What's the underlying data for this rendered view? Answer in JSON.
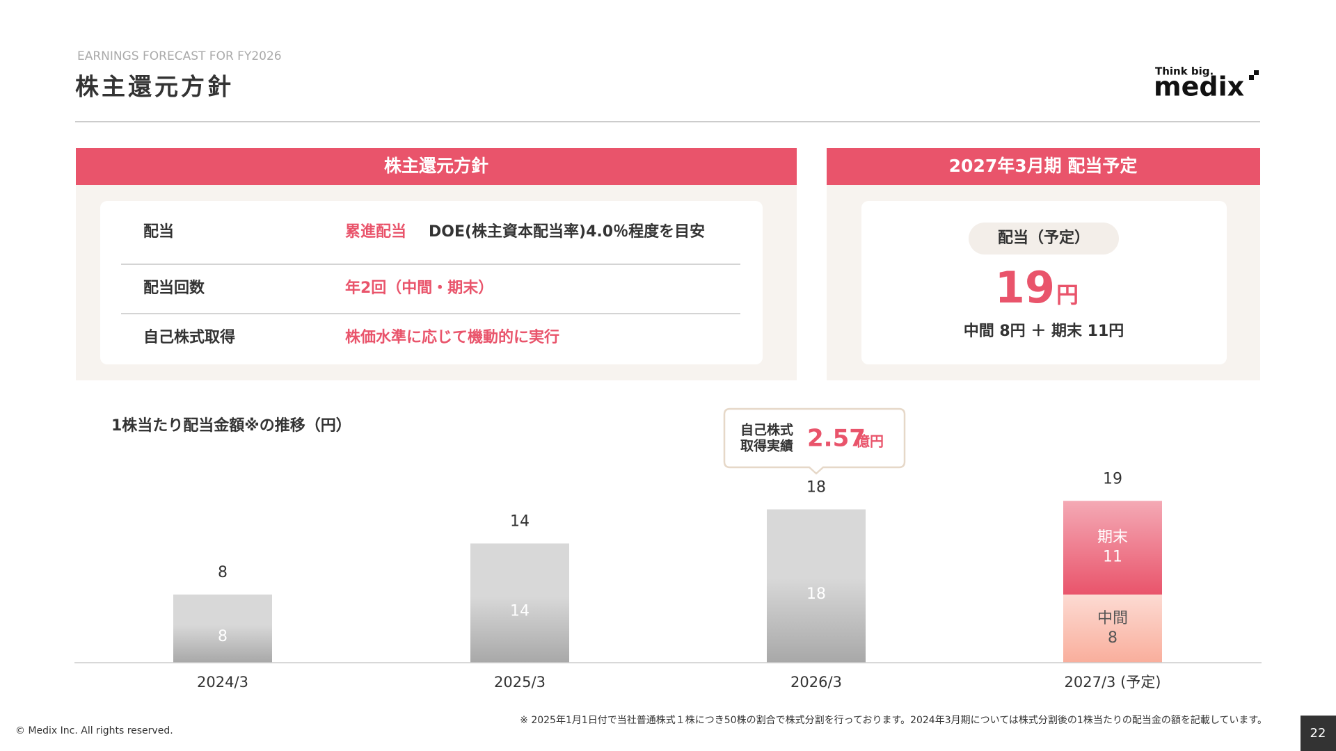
{
  "header": {
    "subtitle": "EARNINGS FORECAST FOR FY2026",
    "title": "株主還元方針",
    "logo_tagline": "Think big.",
    "logo": "medix"
  },
  "policy": {
    "heading": "株主還元方針",
    "rows": [
      {
        "label": "配当",
        "value": "累進配当",
        "detail": "DOE(株主資本配当率)4.0％程度を目安"
      },
      {
        "label": "配当回数",
        "value": "年2回（中間・期末）"
      },
      {
        "label": "自己株式取得",
        "value": "株価水準に応じて機動的に実行"
      }
    ]
  },
  "forecast": {
    "heading": "2027年3月期 配当予定",
    "badge": "配当（予定）",
    "amount": "19",
    "unit": "円",
    "breakdown": "中間 8円 ＋ 期末 11円"
  },
  "chart_data": {
    "type": "bar",
    "title": "1株当たり配当金額※の推移（円）",
    "categories": [
      "2024/3",
      "2025/3",
      "2026/3",
      "2027/3 (予定)"
    ],
    "series": [
      {
        "color": "#a8a8a8",
        "values": [
          8,
          14,
          18,
          null
        ]
      },
      {
        "name": "中間",
        "color": "#f9ae9c",
        "values": [
          null,
          null,
          null,
          8
        ]
      },
      {
        "name": "期末",
        "color": "#e9546b",
        "values": [
          null,
          null,
          null,
          11
        ]
      }
    ],
    "totals": [
      8,
      14,
      18,
      19
    ],
    "ylim": [
      0,
      20
    ],
    "annotation": {
      "lines": [
        "自己株式",
        "取得実績"
      ],
      "value": "2.57",
      "unit": "億円"
    }
  },
  "footnote": "※ 2025年1月1日付で当社普通株式１株につき50株の割合で株式分割を行っております。2024年3月期については株式分割後の1株当たりの配当金の額を記載しています。",
  "copyright": "© Medix Inc. All rights reserved.",
  "page_number": "22"
}
